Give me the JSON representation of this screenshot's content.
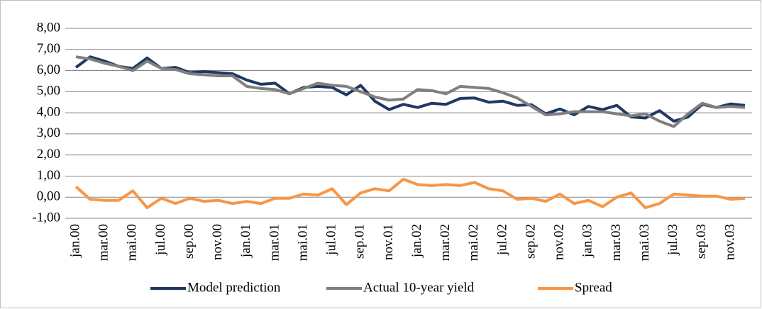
{
  "chart_data": {
    "type": "line",
    "categories": [
      "jan.00",
      null,
      "mar.00",
      null,
      "mai.00",
      null,
      "jul.00",
      null,
      "sep.00",
      null,
      "nov.00",
      null,
      "jan.01",
      null,
      "mar.01",
      null,
      "mai.01",
      null,
      "jul.01",
      null,
      "sep.01",
      null,
      "nov.01",
      null,
      "jan.02",
      null,
      "mar.02",
      null,
      "mai.02",
      null,
      "jul.02",
      null,
      "sep.02",
      null,
      "nov.02",
      null,
      "jan.03",
      null,
      "mar.03",
      null,
      "mai.03",
      null,
      "jul.03",
      null,
      "sep.03",
      null,
      "nov.03",
      null
    ],
    "series": [
      {
        "name": "Model prediction",
        "color": "#1f3864",
        "values": [
          6.15,
          6.65,
          6.45,
          6.2,
          6.1,
          6.6,
          6.1,
          6.15,
          5.9,
          5.95,
          5.9,
          5.85,
          5.55,
          5.35,
          5.4,
          4.9,
          5.2,
          5.25,
          5.2,
          4.85,
          5.3,
          4.55,
          4.15,
          4.4,
          4.25,
          4.45,
          4.4,
          4.68,
          4.7,
          4.5,
          4.55,
          4.35,
          4.38,
          3.95,
          4.18,
          3.9,
          4.3,
          4.15,
          4.35,
          3.8,
          3.75,
          4.1,
          3.6,
          3.8,
          4.4,
          4.25,
          4.42,
          4.35
        ]
      },
      {
        "name": "Actual 10-year yield",
        "color": "#7f7f7f",
        "values": [
          6.65,
          6.55,
          6.35,
          6.2,
          6.0,
          6.45,
          6.1,
          6.05,
          5.85,
          5.8,
          5.75,
          5.75,
          5.25,
          5.15,
          5.1,
          4.9,
          5.15,
          5.4,
          5.3,
          5.25,
          5.0,
          4.75,
          4.6,
          4.65,
          5.1,
          5.05,
          4.9,
          5.25,
          5.2,
          5.15,
          4.95,
          4.7,
          4.3,
          3.9,
          3.95,
          4.05,
          4.05,
          4.05,
          3.95,
          3.85,
          3.95,
          3.6,
          3.35,
          3.95,
          4.45,
          4.25,
          4.3,
          4.25
        ]
      },
      {
        "name": "Spread",
        "color": "#f79646",
        "values": [
          0.5,
          -0.1,
          -0.15,
          -0.15,
          0.3,
          -0.5,
          -0.05,
          -0.3,
          -0.05,
          -0.2,
          -0.15,
          -0.3,
          -0.2,
          -0.3,
          -0.05,
          -0.05,
          0.15,
          0.1,
          0.4,
          -0.35,
          0.2,
          0.4,
          0.3,
          0.85,
          0.6,
          0.55,
          0.6,
          0.55,
          0.7,
          0.4,
          0.3,
          -0.1,
          -0.05,
          -0.2,
          0.15,
          -0.3,
          -0.15,
          -0.45,
          0.0,
          0.2,
          -0.5,
          -0.3,
          0.15,
          0.1,
          0.05,
          0.05,
          -0.1,
          -0.05
        ]
      }
    ],
    "ylim": [
      -1,
      8
    ],
    "yticks": [
      {
        "value": -1,
        "label": "-1,00"
      },
      {
        "value": 0,
        "label": "0,00"
      },
      {
        "value": 1,
        "label": "1,00"
      },
      {
        "value": 2,
        "label": "2,00"
      },
      {
        "value": 3,
        "label": "3,00"
      },
      {
        "value": 4,
        "label": "4,00"
      },
      {
        "value": 5,
        "label": "5,00"
      },
      {
        "value": 6,
        "label": "6,00"
      },
      {
        "value": 7,
        "label": "7,00"
      },
      {
        "value": 8,
        "label": "8,00"
      }
    ],
    "grid": true,
    "legend": "bottom"
  }
}
